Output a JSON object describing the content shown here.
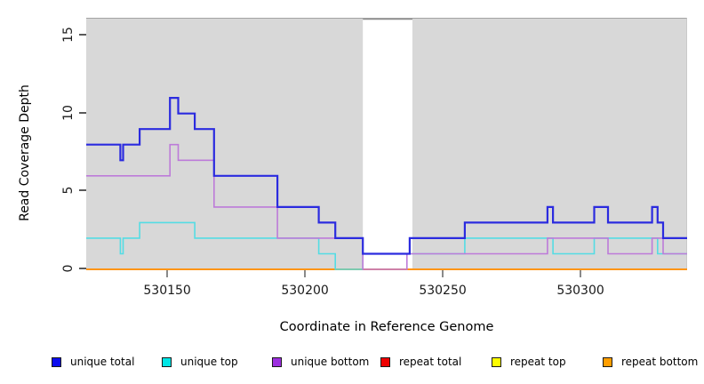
{
  "y_axis": {
    "label": "Read Coverage Depth",
    "ticks": [
      0,
      5,
      10,
      15
    ]
  },
  "x_axis": {
    "label": "Coordinate in Reference Genome",
    "ticks": [
      530150,
      530200,
      530250,
      530300
    ]
  },
  "legend": [
    {
      "label": "unique total",
      "color": "#0d0dee"
    },
    {
      "label": "unique top",
      "color": "#00e6e6"
    },
    {
      "label": "unique bottom",
      "color": "#9d2fe0"
    },
    {
      "label": "repeat total",
      "color": "#ee0000"
    },
    {
      "label": "repeat top",
      "color": "#fdfd00"
    },
    {
      "label": "repeat bottom",
      "color": "#ff9e00"
    }
  ],
  "chart_data": {
    "type": "line",
    "step": true,
    "title": "",
    "xlabel": "Coordinate in Reference Genome",
    "ylabel": "Read Coverage Depth",
    "xlim": [
      530120.6,
      530338.7
    ],
    "ylim": [
      0,
      16.1
    ],
    "grid": false,
    "legend_position": "bottom",
    "panel_bg": "#d8d8d8",
    "band": {
      "x0": 530221,
      "x1": 530239,
      "color": "#ffffff",
      "border": "#8f8f8f"
    },
    "series": [
      {
        "name": "unique total",
        "color": "#2b2bdf",
        "width": 2.2,
        "points": [
          [
            530120.6,
            8
          ],
          [
            530133,
            7
          ],
          [
            530134,
            8
          ],
          [
            530140,
            9
          ],
          [
            530151,
            11
          ],
          [
            530154,
            10
          ],
          [
            530160,
            9
          ],
          [
            530167,
            6
          ],
          [
            530190,
            4
          ],
          [
            530205,
            3
          ],
          [
            530211,
            2
          ],
          [
            530221,
            1
          ],
          [
            530238,
            2
          ],
          [
            530258,
            3
          ],
          [
            530288,
            4
          ],
          [
            530290,
            3
          ],
          [
            530305,
            4
          ],
          [
            530310,
            3
          ],
          [
            530326,
            4
          ],
          [
            530328,
            3
          ],
          [
            530330,
            2
          ]
        ]
      },
      {
        "name": "unique top",
        "color": "#54dce4",
        "width": 1.6,
        "points": [
          [
            530120.6,
            2
          ],
          [
            530133,
            1
          ],
          [
            530134,
            2
          ],
          [
            530140,
            3
          ],
          [
            530160,
            2
          ],
          [
            530205,
            1
          ],
          [
            530211,
            0
          ],
          [
            530221,
            1
          ],
          [
            530258,
            2
          ],
          [
            530290,
            1
          ],
          [
            530305,
            2
          ],
          [
            530328,
            1
          ]
        ]
      },
      {
        "name": "unique bottom",
        "color": "#bd7bd9",
        "width": 1.6,
        "points": [
          [
            530120.6,
            6
          ],
          [
            530151,
            8
          ],
          [
            530154,
            7
          ],
          [
            530167,
            4
          ],
          [
            530190,
            2
          ],
          [
            530221,
            0
          ],
          [
            530237,
            1
          ],
          [
            530288,
            2
          ],
          [
            530310,
            1
          ],
          [
            530326,
            2
          ],
          [
            530330,
            1
          ]
        ]
      },
      {
        "name": "repeat total",
        "color": "#dd2020",
        "width": 1.2,
        "points": [
          [
            530120.6,
            0
          ]
        ]
      },
      {
        "name": "repeat top",
        "color": "#e8e820",
        "width": 1.2,
        "points": [
          [
            530120.6,
            0
          ]
        ]
      },
      {
        "name": "repeat bottom",
        "color": "#ff9517",
        "width": 2,
        "points": [
          [
            530120.6,
            0
          ]
        ]
      }
    ],
    "draw_order": [
      3,
      4,
      5,
      1,
      2,
      0
    ]
  }
}
